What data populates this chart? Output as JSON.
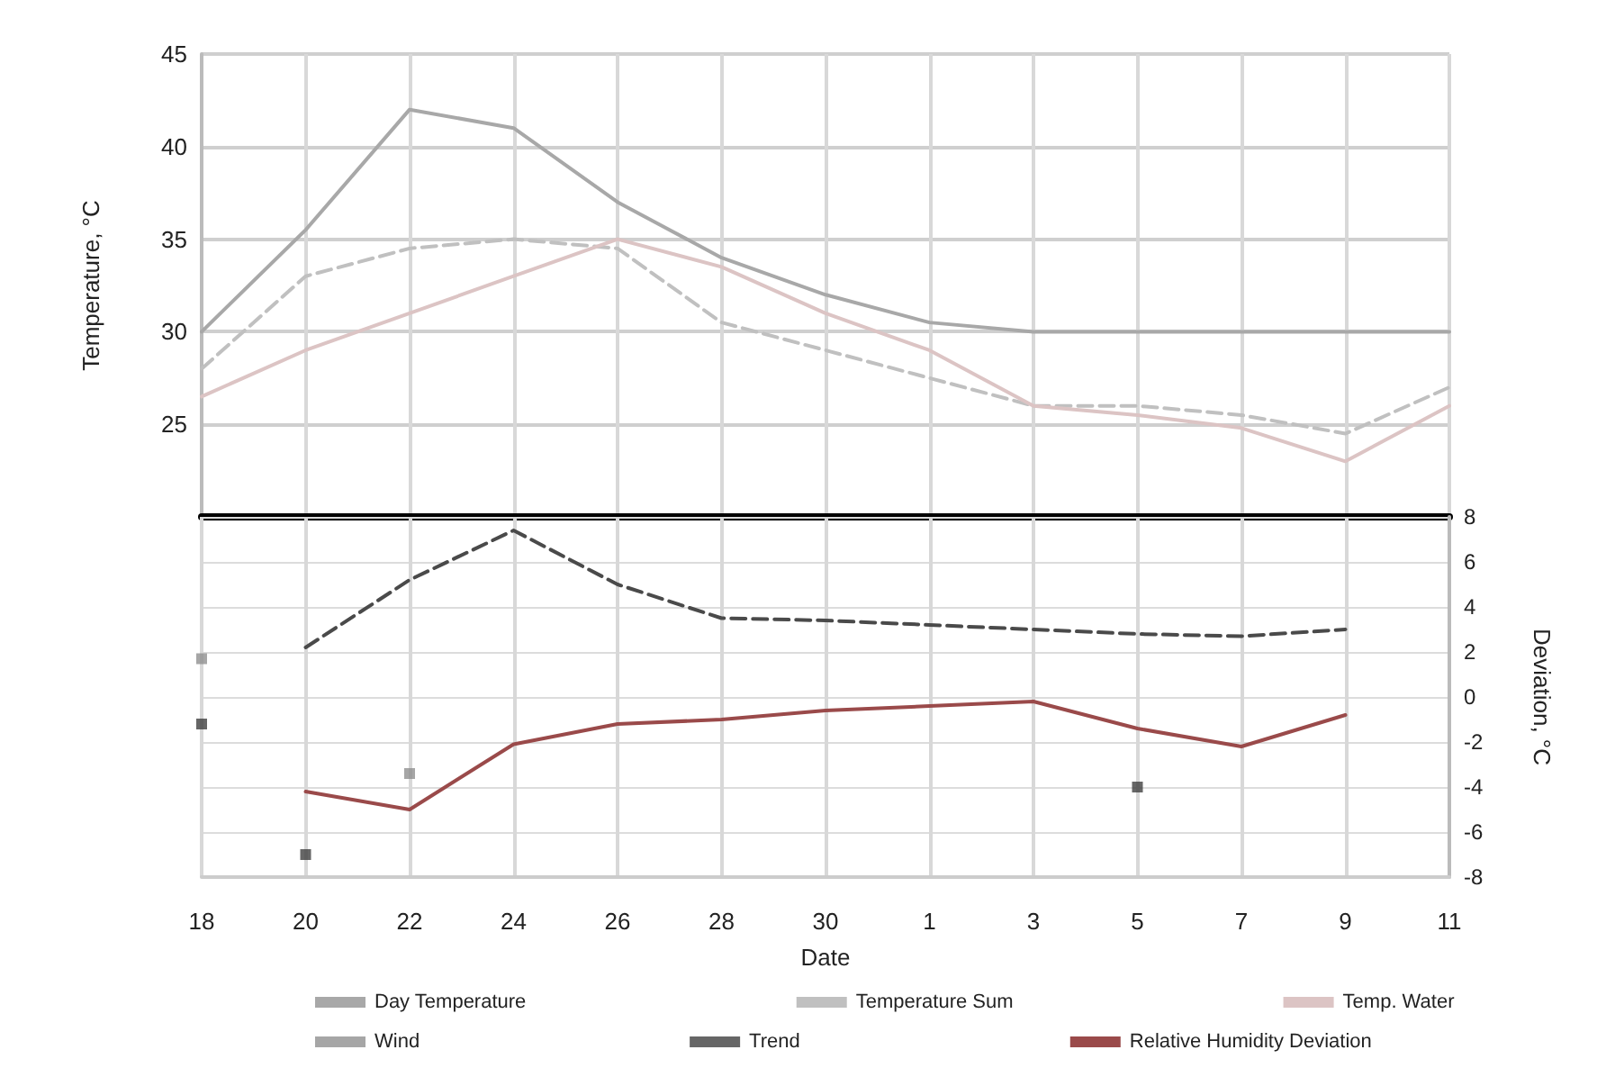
{
  "chart_data": [
    {
      "type": "line",
      "ylabel": "Temperature, °C",
      "categories": [
        "18",
        "20",
        "22",
        "24",
        "26",
        "28",
        "30",
        "1",
        "3",
        "5",
        "7",
        "9",
        "11"
      ],
      "ylim": [
        20,
        45
      ],
      "yticks": [
        25,
        30,
        35,
        40,
        45
      ],
      "grid": true,
      "legend": "bottom",
      "tick_labels": "y",
      "marker": "none",
      "series": [
        {
          "name": "Day Temperature",
          "color": "#a8a8a8",
          "line_style": "solid",
          "values": [
            30,
            35.5,
            42,
            41,
            37,
            34,
            32,
            30.5,
            30,
            30,
            30,
            30,
            30
          ]
        },
        {
          "name": "Temperature Sum",
          "color": "#c0c0c0",
          "line_style": "dashed",
          "values": [
            28,
            33,
            34.5,
            35,
            34.5,
            30.5,
            29,
            27.5,
            26,
            26,
            25.5,
            24.5,
            27
          ]
        },
        {
          "name": "Temp. Water",
          "color": "#dcc4c4",
          "line_style": "solid",
          "values": [
            26.5,
            29,
            31,
            33,
            35,
            33.5,
            31,
            29,
            26,
            25.5,
            24.8,
            23,
            26
          ]
        }
      ]
    },
    {
      "type": "line",
      "xlabel": "Date",
      "y2label": "Deviation, °C",
      "categories": [
        "18",
        "20",
        "22",
        "24",
        "26",
        "28",
        "30",
        "1",
        "3",
        "5",
        "7",
        "9",
        "11"
      ],
      "y2lim": [
        -8,
        8
      ],
      "y2ticks": [
        -8,
        -6,
        -4,
        -2,
        0,
        2,
        4,
        6,
        8
      ],
      "grid": true,
      "legend": "bottom",
      "marker": "none",
      "series": [
        {
          "name": "Wind",
          "type": "scatter",
          "axis": "y2",
          "marker": "square",
          "color": "#909090",
          "values": [
            1.7,
            null,
            -3.4,
            null,
            null,
            null,
            null,
            null,
            null,
            null,
            null,
            null,
            null
          ]
        },
        {
          "name": "Trend",
          "type": "scatter",
          "axis": "y2",
          "marker": "square",
          "color": "#404040",
          "values": [
            -1.2,
            -7,
            null,
            null,
            null,
            null,
            null,
            null,
            null,
            -4,
            null,
            null,
            null
          ]
        },
        {
          "type": "line",
          "axis": "y2",
          "color": "#4a4a4a",
          "line_style": "dashed",
          "values": [
            null,
            2.2,
            5.2,
            7.4,
            5,
            3.5,
            3.4,
            3.2,
            3,
            2.8,
            2.7,
            3,
            null
          ]
        },
        {
          "name": "Relative Humidity Deviation",
          "axis": "y2",
          "color": "#9a4a4a",
          "line_style": "solid",
          "values": [
            null,
            -4.2,
            -5,
            -2.1,
            -1.2,
            -1,
            -0.6,
            -0.4,
            -0.2,
            -1.4,
            -2.2,
            -0.8,
            null
          ]
        }
      ]
    }
  ]
}
